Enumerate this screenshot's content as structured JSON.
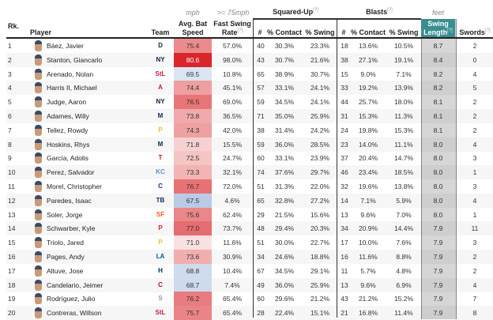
{
  "header": {
    "rank": "Rk.",
    "player": "Player",
    "team": "Team",
    "bat_speed_unit": "mph",
    "bat_speed": "Avg. Bat Speed",
    "fast_swing_unit": ">= 75mph",
    "fast_swing": "Fast Swing Rate",
    "squared_up": "Squared-Up",
    "blasts": "Blasts",
    "num": "#",
    "pct_contact": "% Contact",
    "pct_swing": "% Swing",
    "swing_length_unit": "feet",
    "swing_length": "Swing Length",
    "swords": "Swords",
    "help": "[?]"
  },
  "colors": {
    "accent_teal": "#3a8e90",
    "high": "#d9262a",
    "low": "#b9cbe6"
  },
  "rows": [
    {
      "rk": "1",
      "name": "Báez, Javier",
      "team": "D",
      "tc": "#0c2340",
      "bs": 75.4,
      "fsr": "57.0%",
      "sq": [
        "40",
        "30.3%",
        "23.3%"
      ],
      "bl": [
        "18",
        "13.6%",
        "10.5%"
      ],
      "sl": "8.7",
      "sw": "2"
    },
    {
      "rk": "2",
      "name": "Stanton, Giancarlo",
      "team": "NY",
      "tc": "#0c2340",
      "bs": 80.6,
      "fsr": "98.0%",
      "sq": [
        "43",
        "30.7%",
        "21.6%"
      ],
      "bl": [
        "38",
        "27.1%",
        "19.1%"
      ],
      "sl": "8.4",
      "sw": "0"
    },
    {
      "rk": "3",
      "name": "Arenado, Nolan",
      "team": "StL",
      "tc": "#c41e3a",
      "bs": 69.5,
      "fsr": "10.8%",
      "sq": [
        "65",
        "38.9%",
        "30.7%"
      ],
      "bl": [
        "15",
        "9.0%",
        "7.1%"
      ],
      "sl": "8.2",
      "sw": "4"
    },
    {
      "rk": "4",
      "name": "Harris II, Michael",
      "team": "A",
      "tc": "#ce1141",
      "bs": 74.4,
      "fsr": "45.1%",
      "sq": [
        "57",
        "33.1%",
        "24.1%"
      ],
      "bl": [
        "33",
        "19.2%",
        "13.9%"
      ],
      "sl": "8.2",
      "sw": "5"
    },
    {
      "rk": "5",
      "name": "Judge, Aaron",
      "team": "NY",
      "tc": "#0c2340",
      "bs": 76.5,
      "fsr": "69.0%",
      "sq": [
        "59",
        "34.5%",
        "24.1%"
      ],
      "bl": [
        "44",
        "25.7%",
        "18.0%"
      ],
      "sl": "8.1",
      "sw": "2"
    },
    {
      "rk": "6",
      "name": "Adames, Willy",
      "team": "M",
      "tc": "#12284b",
      "bs": 73.8,
      "fsr": "36.5%",
      "sq": [
        "71",
        "35.0%",
        "25.9%"
      ],
      "bl": [
        "31",
        "15.3%",
        "11.3%"
      ],
      "sl": "8.1",
      "sw": "2"
    },
    {
      "rk": "7",
      "name": "Tellez, Rowdy",
      "team": "P",
      "tc": "#fdb827",
      "bs": 74.3,
      "fsr": "42.0%",
      "sq": [
        "38",
        "31.4%",
        "24.2%"
      ],
      "bl": [
        "24",
        "19.8%",
        "15.3%"
      ],
      "sl": "8.1",
      "sw": "2"
    },
    {
      "rk": "8",
      "name": "Hoskins, Rhys",
      "team": "M",
      "tc": "#12284b",
      "bs": 71.8,
      "fsr": "15.5%",
      "sq": [
        "59",
        "36.0%",
        "28.5%"
      ],
      "bl": [
        "23",
        "14.0%",
        "11.1%"
      ],
      "sl": "8.0",
      "sw": "4"
    },
    {
      "rk": "9",
      "name": "García, Adolis",
      "team": "T",
      "tc": "#c0111f",
      "bs": 72.5,
      "fsr": "24.7%",
      "sq": [
        "60",
        "33.1%",
        "23.9%"
      ],
      "bl": [
        "37",
        "20.4%",
        "14.7%"
      ],
      "sl": "8.0",
      "sw": "3"
    },
    {
      "rk": "10",
      "name": "Perez, Salvador",
      "team": "KC",
      "tc": "#5a8fc9",
      "bs": 73.3,
      "fsr": "32.1%",
      "sq": [
        "74",
        "37.6%",
        "29.7%"
      ],
      "bl": [
        "46",
        "23.4%",
        "18.5%"
      ],
      "sl": "8.0",
      "sw": "1"
    },
    {
      "rk": "11",
      "name": "Morel, Christopher",
      "team": "C",
      "tc": "#0e3386",
      "bs": 76.7,
      "fsr": "72.0%",
      "sq": [
        "51",
        "31.3%",
        "22.0%"
      ],
      "bl": [
        "32",
        "19.6%",
        "13.8%"
      ],
      "sl": "8.0",
      "sw": "3"
    },
    {
      "rk": "12",
      "name": "Paredes, Isaac",
      "team": "TB",
      "tc": "#092c5c",
      "bs": 67.5,
      "fsr": "4.6%",
      "sq": [
        "65",
        "32.8%",
        "27.2%"
      ],
      "bl": [
        "14",
        "7.1%",
        "5.9%"
      ],
      "sl": "8.0",
      "sw": "4"
    },
    {
      "rk": "13",
      "name": "Soler, Jorge",
      "team": "SF",
      "tc": "#fd5a1e",
      "bs": 75.6,
      "fsr": "62.4%",
      "sq": [
        "29",
        "21.5%",
        "15.6%"
      ],
      "bl": [
        "13",
        "9.6%",
        "7.0%"
      ],
      "sl": "8.0",
      "sw": "1"
    },
    {
      "rk": "14",
      "name": "Schwarber, Kyle",
      "team": "P",
      "tc": "#e81828",
      "bs": 77.0,
      "fsr": "73.7%",
      "sq": [
        "48",
        "29.4%",
        "20.3%"
      ],
      "bl": [
        "34",
        "20.9%",
        "14.4%"
      ],
      "sl": "7.9",
      "sw": "11"
    },
    {
      "rk": "15",
      "name": "Triolo, Jared",
      "team": "P",
      "tc": "#fdb827",
      "bs": 71.0,
      "fsr": "11.6%",
      "sq": [
        "51",
        "30.0%",
        "22.7%"
      ],
      "bl": [
        "17",
        "10.0%",
        "7.6%"
      ],
      "sl": "7.9",
      "sw": "3"
    },
    {
      "rk": "16",
      "name": "Pages, Andy",
      "team": "LA",
      "tc": "#005a9c",
      "bs": 73.6,
      "fsr": "30.9%",
      "sq": [
        "34",
        "24.6%",
        "18.8%"
      ],
      "bl": [
        "16",
        "11.6%",
        "8.8%"
      ],
      "sl": "7.9",
      "sw": "2"
    },
    {
      "rk": "17",
      "name": "Altuve, Jose",
      "team": "H",
      "tc": "#002d62",
      "bs": 68.8,
      "fsr": "10.4%",
      "sq": [
        "67",
        "34.5%",
        "29.1%"
      ],
      "bl": [
        "11",
        "5.7%",
        "4.8%"
      ],
      "sl": "7.9",
      "sw": "2"
    },
    {
      "rk": "18",
      "name": "Candelario, Jeimer",
      "team": "C",
      "tc": "#c6011f",
      "bs": 68.7,
      "fsr": "7.4%",
      "sq": [
        "49",
        "36.0%",
        "25.9%"
      ],
      "bl": [
        "13",
        "9.6%",
        "6.9%"
      ],
      "sl": "7.9",
      "sw": "4"
    },
    {
      "rk": "19",
      "name": "Rodríguez, Julio",
      "team": "S",
      "tc": "#8a9aa6",
      "bs": 76.2,
      "fsr": "65.4%",
      "sq": [
        "60",
        "29.6%",
        "21.2%"
      ],
      "bl": [
        "43",
        "21.2%",
        "15.2%"
      ],
      "sl": "7.9",
      "sw": "7"
    },
    {
      "rk": "20",
      "name": "Contreras, Willson",
      "team": "StL",
      "tc": "#c41e3a",
      "bs": 75.7,
      "fsr": "65.4%",
      "sq": [
        "28",
        "22.4%",
        "15.1%"
      ],
      "bl": [
        "21",
        "16.8%",
        "11.4%"
      ],
      "sl": "7.9",
      "sw": "8"
    }
  ]
}
